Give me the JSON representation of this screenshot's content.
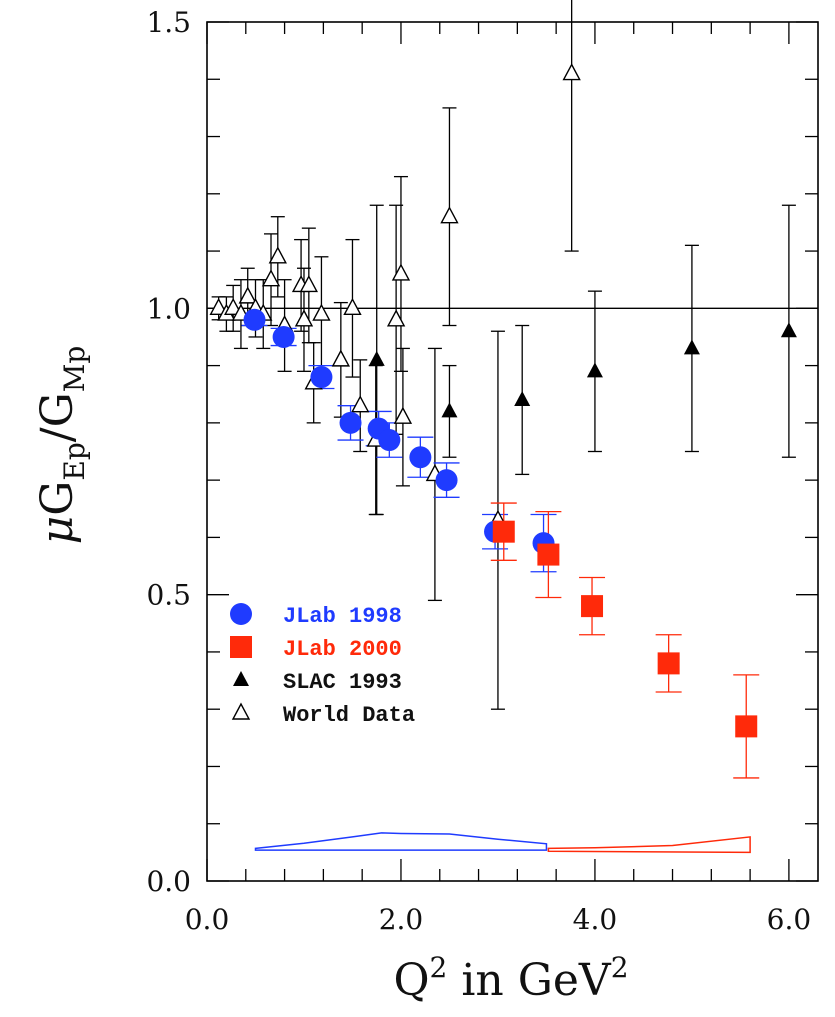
{
  "chart_data": {
    "type": "scatter",
    "title": "",
    "xlabel": {
      "base": "Q",
      "sup": "2",
      "mid": " in GeV",
      "sup2": "2"
    },
    "ylabel": {
      "mu": "μ",
      "g1": "G",
      "sub1": "Ep",
      "slash": "/",
      "g2": "G",
      "sub2": "Mp"
    },
    "xlim": [
      0.0,
      6.3
    ],
    "ylim": [
      0.0,
      1.5
    ],
    "x_ticks": [
      {
        "value": 0.0,
        "label": "0.0"
      },
      {
        "value": 2.0,
        "label": "2.0"
      },
      {
        "value": 4.0,
        "label": "4.0"
      },
      {
        "value": 6.0,
        "label": "6.0"
      }
    ],
    "y_ticks": [
      {
        "value": 0.0,
        "label": "0.0"
      },
      {
        "value": 0.5,
        "label": "0.5"
      },
      {
        "value": 1.0,
        "label": "1.0"
      },
      {
        "value": 1.5,
        "label": "1.5"
      }
    ],
    "reference_line": {
      "y": 1.0,
      "color": "#000000"
    },
    "legend_position": "lower-left",
    "series": [
      {
        "name": "JLab 1998",
        "color": "#1f3bff",
        "marker": "circle-filled",
        "points": [
          {
            "x": 0.49,
            "y": 0.98,
            "err": 0.01
          },
          {
            "x": 0.79,
            "y": 0.95,
            "err": 0.015
          },
          {
            "x": 1.18,
            "y": 0.88,
            "err": 0.02
          },
          {
            "x": 1.48,
            "y": 0.8,
            "err": 0.03
          },
          {
            "x": 1.77,
            "y": 0.79,
            "err": 0.03
          },
          {
            "x": 1.88,
            "y": 0.77,
            "err": 0.03
          },
          {
            "x": 2.47,
            "y": 0.7,
            "err": 0.03
          },
          {
            "x": 2.97,
            "y": 0.61,
            "err": 0.03
          },
          {
            "x": 3.47,
            "y": 0.59,
            "err": 0.05
          },
          {
            "x": 2.2,
            "y": 0.74,
            "err": 0.035
          }
        ]
      },
      {
        "name": "JLab 2000",
        "color": "#ff2a0a",
        "marker": "square-filled",
        "points": [
          {
            "x": 3.06,
            "y": 0.61,
            "err": 0.05
          },
          {
            "x": 3.52,
            "y": 0.57,
            "err": 0.075
          },
          {
            "x": 3.97,
            "y": 0.48,
            "err": 0.05
          },
          {
            "x": 4.76,
            "y": 0.38,
            "err": 0.05
          },
          {
            "x": 5.56,
            "y": 0.27,
            "err": 0.09
          }
        ]
      },
      {
        "name": "SLAC 1993",
        "color": "#000000",
        "marker": "triangle-filled",
        "points": [
          {
            "x": 1.75,
            "y": 0.91,
            "err": 0.27
          },
          {
            "x": 2.5,
            "y": 0.82,
            "err": 0.08
          },
          {
            "x": 3.25,
            "y": 0.84,
            "err": 0.13
          },
          {
            "x": 4.0,
            "y": 0.89,
            "err": 0.14
          },
          {
            "x": 5.0,
            "y": 0.93,
            "err": 0.18
          },
          {
            "x": 6.0,
            "y": 0.96,
            "err": 0.22
          }
        ]
      },
      {
        "name": "World Data",
        "color": "#000000",
        "marker": "triangle-open",
        "points": [
          {
            "x": 0.12,
            "y": 1.0,
            "err": 0.02
          },
          {
            "x": 0.2,
            "y": 0.99,
            "err": 0.03
          },
          {
            "x": 0.27,
            "y": 1.0,
            "err": 0.04
          },
          {
            "x": 0.35,
            "y": 0.99,
            "err": 0.06
          },
          {
            "x": 0.42,
            "y": 1.02,
            "err": 0.05
          },
          {
            "x": 0.5,
            "y": 1.0,
            "err": 0.05
          },
          {
            "x": 0.58,
            "y": 0.99,
            "err": 0.06
          },
          {
            "x": 0.66,
            "y": 1.05,
            "err": 0.08
          },
          {
            "x": 0.73,
            "y": 1.09,
            "err": 0.07
          },
          {
            "x": 0.8,
            "y": 0.97,
            "err": 0.08
          },
          {
            "x": 0.97,
            "y": 1.04,
            "err": 0.08
          },
          {
            "x": 1.0,
            "y": 0.98,
            "err": 0.09
          },
          {
            "x": 1.05,
            "y": 1.04,
            "err": 0.1
          },
          {
            "x": 1.1,
            "y": 0.87,
            "err": 0.07
          },
          {
            "x": 1.18,
            "y": 0.99,
            "err": 0.1
          },
          {
            "x": 1.38,
            "y": 0.91,
            "err": 0.1
          },
          {
            "x": 1.5,
            "y": 1.0,
            "err": 0.12
          },
          {
            "x": 1.58,
            "y": 0.83,
            "err": 0.08
          },
          {
            "x": 1.74,
            "y": 0.77,
            "err": 0.13
          },
          {
            "x": 1.95,
            "y": 0.98,
            "err": 0.2
          },
          {
            "x": 2.0,
            "y": 1.06,
            "err": 0.17
          },
          {
            "x": 2.02,
            "y": 0.81,
            "err": 0.12
          },
          {
            "x": 2.35,
            "y": 0.71,
            "err": 0.22
          },
          {
            "x": 2.5,
            "y": 1.16,
            "err": 0.19
          },
          {
            "x": 3.0,
            "y": 0.63,
            "err": 0.33
          },
          {
            "x": 3.76,
            "y": 1.41,
            "err": 0.31
          }
        ]
      }
    ],
    "systematic_bands": [
      {
        "name": "JLab 1998 systematic",
        "color": "#1f3bff",
        "upper": [
          [
            0.5,
            0.057
          ],
          [
            1.0,
            0.066
          ],
          [
            1.5,
            0.077
          ],
          [
            1.8,
            0.084
          ],
          [
            2.0,
            0.083
          ],
          [
            2.5,
            0.082
          ],
          [
            3.0,
            0.073
          ],
          [
            3.5,
            0.065
          ]
        ],
        "lower": [
          [
            0.5,
            0.054
          ],
          [
            3.5,
            0.054
          ]
        ]
      },
      {
        "name": "JLab 2000 systematic",
        "color": "#ff2a0a",
        "upper": [
          [
            3.52,
            0.057
          ],
          [
            4.0,
            0.058
          ],
          [
            4.8,
            0.062
          ],
          [
            5.6,
            0.077
          ]
        ],
        "lower": [
          [
            3.52,
            0.052
          ],
          [
            5.6,
            0.05
          ]
        ]
      }
    ]
  }
}
